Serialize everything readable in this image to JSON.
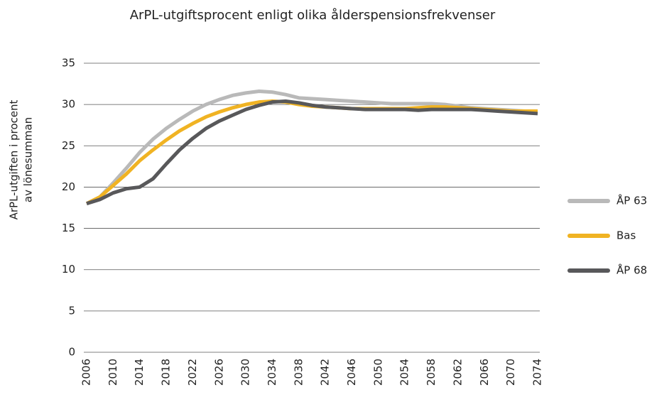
{
  "chart_data": {
    "type": "line",
    "title": "ArPL-utgiftsprocent enligt olika ålderspensionsfrekvenser",
    "ylabel": [
      "ArPL-utgiften i procent",
      "av lönesumman"
    ],
    "x": [
      2006,
      2008,
      2010,
      2012,
      2014,
      2016,
      2018,
      2020,
      2022,
      2024,
      2026,
      2028,
      2030,
      2032,
      2034,
      2036,
      2038,
      2040,
      2042,
      2044,
      2046,
      2048,
      2050,
      2052,
      2054,
      2056,
      2058,
      2060,
      2062,
      2064,
      2066,
      2068,
      2070,
      2072,
      2074
    ],
    "series": [
      {
        "name": "ÅP 63",
        "color": "#b9b9b9",
        "values": [
          18.0,
          18.8,
          20.5,
          22.3,
          24.2,
          25.8,
          27.1,
          28.2,
          29.2,
          30.0,
          30.6,
          31.1,
          31.4,
          31.6,
          31.5,
          31.2,
          30.8,
          30.7,
          30.6,
          30.5,
          30.4,
          30.3,
          30.2,
          30.1,
          30.1,
          30.1,
          30.1,
          30.0,
          29.8,
          29.6,
          29.5,
          29.4,
          29.3,
          29.2,
          29.2
        ]
      },
      {
        "name": "Bas",
        "color": "#f0b323",
        "values": [
          18.0,
          18.8,
          20.2,
          21.6,
          23.2,
          24.5,
          25.7,
          26.8,
          27.7,
          28.5,
          29.1,
          29.6,
          30.0,
          30.3,
          30.4,
          30.3,
          30.0,
          29.8,
          29.7,
          29.6,
          29.5,
          29.5,
          29.5,
          29.5,
          29.5,
          29.6,
          29.7,
          29.7,
          29.6,
          29.5,
          29.4,
          29.3,
          29.2,
          29.2,
          29.2
        ]
      },
      {
        "name": "ÅP 68",
        "color": "#58585a",
        "values": [
          18.0,
          18.5,
          19.3,
          19.8,
          20.0,
          21.0,
          22.8,
          24.5,
          25.9,
          27.1,
          28.0,
          28.7,
          29.4,
          29.9,
          30.3,
          30.4,
          30.2,
          29.9,
          29.7,
          29.6,
          29.5,
          29.4,
          29.4,
          29.4,
          29.4,
          29.3,
          29.4,
          29.4,
          29.4,
          29.4,
          29.3,
          29.2,
          29.1,
          29.0,
          28.9
        ]
      }
    ],
    "xlim": [
      2006,
      2074
    ],
    "xticks": [
      2006,
      2010,
      2014,
      2018,
      2022,
      2026,
      2030,
      2034,
      2038,
      2042,
      2046,
      2050,
      2054,
      2058,
      2062,
      2066,
      2070,
      2074
    ],
    "ylim": [
      0,
      35
    ],
    "yticks": [
      0,
      5,
      10,
      15,
      20,
      25,
      30,
      35
    ],
    "grid": true,
    "legend": "right"
  }
}
